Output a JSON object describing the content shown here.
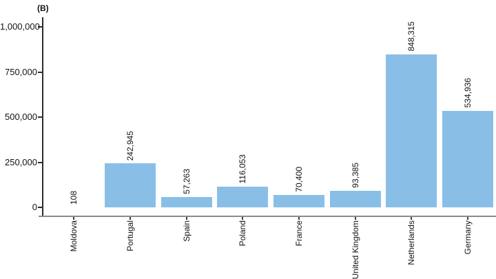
{
  "panel_label": "(B)",
  "chart_data": {
    "type": "bar",
    "title": "",
    "xlabel": "",
    "ylabel": "",
    "categories": [
      "Moldova",
      "Portugal",
      "Spain",
      "Poland",
      "France",
      "United Kingdom",
      "Netherlands",
      "Germany"
    ],
    "values": [
      108,
      242945,
      57263,
      116053,
      70400,
      93385,
      848315,
      534936
    ],
    "value_labels": [
      "108",
      "242,945",
      "57,263",
      "116,053",
      "70,400",
      "93,385",
      "848,315",
      "534,936"
    ],
    "ylim": [
      0,
      1000000
    ],
    "y_ticks": [
      0,
      250000,
      500000,
      750000,
      1000000
    ],
    "y_tick_labels": [
      "0",
      "250,000",
      "500,000",
      "750,000",
      "1,000,000"
    ],
    "bar_color": "#89BFE7",
    "grid": "off",
    "legend": "none",
    "bar_label_rotation": 90,
    "x_tick_label_rotation": 90
  }
}
